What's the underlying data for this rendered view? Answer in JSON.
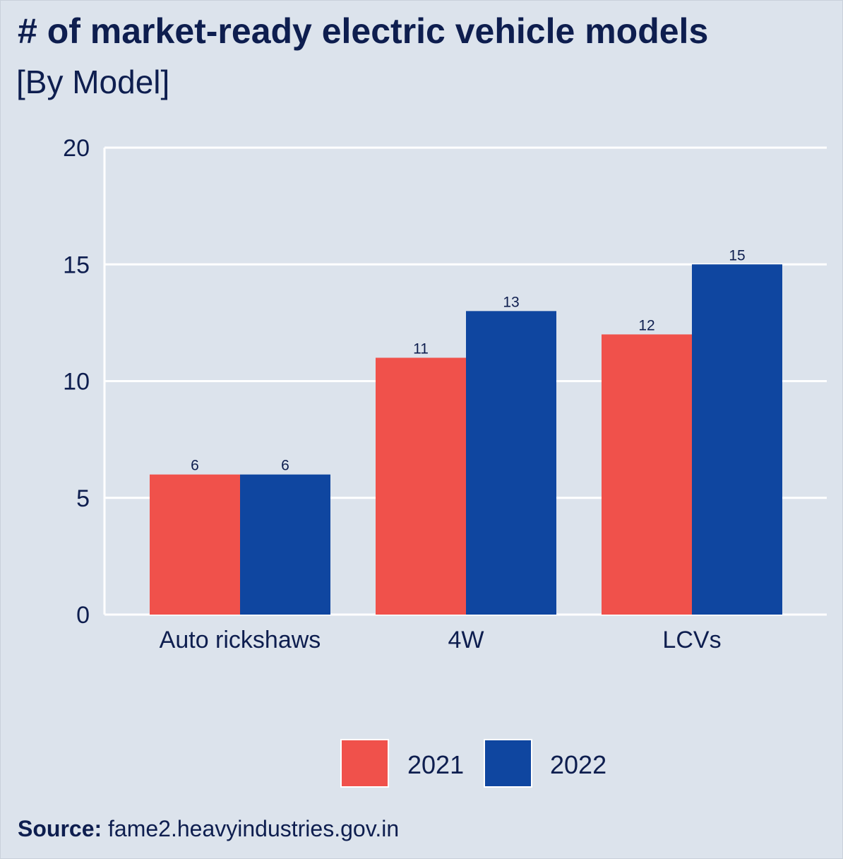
{
  "title": "# of market-ready electric vehicle models",
  "subtitle": "[By Model]",
  "source": {
    "label": "Source:",
    "text": "fame2.heavyindustries.gov.in"
  },
  "colors": {
    "background": "#dce3ec",
    "text": "#0e1e4f",
    "grid": "#ffffff",
    "series_2021": "#f0514b",
    "series_2022": "#0f46a0"
  },
  "chart_data": {
    "type": "bar",
    "categories": [
      "Auto rickshaws",
      "4W",
      "LCVs"
    ],
    "series": [
      {
        "name": "2021",
        "values": [
          6,
          11,
          12
        ],
        "color": "#f0514b"
      },
      {
        "name": "2022",
        "values": [
          6,
          13,
          15
        ],
        "color": "#0f46a0"
      }
    ],
    "ylim": [
      0,
      20
    ],
    "yticks": [
      0,
      5,
      10,
      15,
      20
    ],
    "xlabel": "",
    "ylabel": "",
    "grid": true,
    "legend": "bottom"
  }
}
